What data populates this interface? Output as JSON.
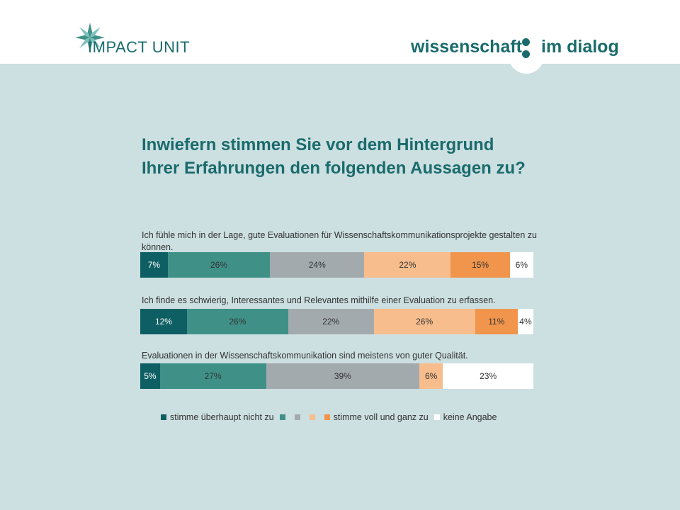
{
  "header": {
    "impact_logo_a": "IMPACT",
    "impact_logo_b": "UNIT",
    "wid_left": "wissenschaft",
    "wid_right": "im dialog"
  },
  "colors": {
    "background": "#ccdfe1",
    "brand": "#1a6b6c",
    "c1": "#0e5f63",
    "c2": "#3f9188",
    "c3": "#a3aaae",
    "c4": "#f7bd8c",
    "c5": "#f1954c",
    "c6": "#ffffff"
  },
  "chart_data": {
    "type": "bar",
    "orientation": "horizontal-stacked-100",
    "title_lines": [
      "Inwiefern stimmen Sie vor dem Hintergrund",
      "Ihrer Erfahrungen den folgenden Aussagen zu?"
    ],
    "categories": [
      "Ich fühle mich in der Lage, gute Evaluationen für Wissenschaftskommunikationsprojekte gestalten zu können.",
      "Ich finde es schwierig, Interessantes und Relevantes mithilfe einer Evaluation zu erfassen.",
      "Evaluationen in der Wissenschaftskommunikation sind meistens von guter Qualität."
    ],
    "series": [
      {
        "name": "stimme überhaupt nicht zu",
        "color": "#0e5f63",
        "values": [
          7,
          12,
          5
        ]
      },
      {
        "name": "",
        "color": "#3f9188",
        "values": [
          26,
          26,
          27
        ]
      },
      {
        "name": "",
        "color": "#a3aaae",
        "values": [
          24,
          22,
          39
        ]
      },
      {
        "name": "",
        "color": "#f7bd8c",
        "values": [
          22,
          26,
          6
        ]
      },
      {
        "name": "stimme voll und ganz zu",
        "color": "#f1954c",
        "values": [
          15,
          11,
          0
        ]
      },
      {
        "name": "keine Angabe",
        "color": "#ffffff",
        "values": [
          6,
          4,
          23
        ]
      }
    ],
    "value_suffix": "%",
    "legend_position": "bottom"
  }
}
